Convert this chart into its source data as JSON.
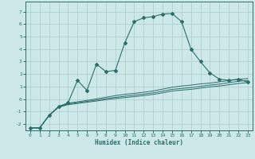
{
  "bg_color": "#cce8e8",
  "grid_color": "#aacccc",
  "line_color": "#2d6e6a",
  "xlabel": "Humidex (Indice chaleur)",
  "xlim": [
    -0.5,
    23.5
  ],
  "ylim": [
    -2.5,
    7.8
  ],
  "yticks": [
    -2,
    -1,
    0,
    1,
    2,
    3,
    4,
    5,
    6,
    7
  ],
  "xticks": [
    0,
    1,
    2,
    3,
    4,
    5,
    6,
    7,
    8,
    9,
    10,
    11,
    12,
    13,
    14,
    15,
    16,
    17,
    18,
    19,
    20,
    21,
    22,
    23
  ],
  "lines": [
    {
      "x": [
        0,
        1,
        2,
        3,
        4,
        5,
        6,
        7,
        8,
        9,
        10,
        11,
        12,
        13,
        14,
        15,
        16,
        17,
        18,
        19,
        20,
        21,
        22,
        23
      ],
      "y": [
        -2.3,
        -2.3,
        -1.3,
        -0.6,
        -0.3,
        1.5,
        0.7,
        2.8,
        2.2,
        2.3,
        4.5,
        6.2,
        6.5,
        6.6,
        6.8,
        6.85,
        6.2,
        4.0,
        3.0,
        2.1,
        1.6,
        1.5,
        1.6,
        1.35
      ],
      "marker": true
    },
    {
      "x": [
        0,
        1,
        2,
        3,
        4,
        5,
        6,
        7,
        8,
        9,
        10,
        11,
        12,
        13,
        14,
        15,
        16,
        17,
        18,
        19,
        20,
        21,
        22,
        23
      ],
      "y": [
        -2.3,
        -2.3,
        -1.3,
        -0.65,
        -0.45,
        -0.35,
        -0.25,
        -0.15,
        -0.05,
        0.05,
        0.12,
        0.2,
        0.28,
        0.38,
        0.5,
        0.65,
        0.72,
        0.78,
        0.88,
        0.98,
        1.05,
        1.15,
        1.25,
        1.32
      ],
      "marker": false
    },
    {
      "x": [
        0,
        1,
        2,
        3,
        4,
        5,
        6,
        7,
        8,
        9,
        10,
        11,
        12,
        13,
        14,
        15,
        16,
        17,
        18,
        19,
        20,
        21,
        22,
        23
      ],
      "y": [
        -2.3,
        -2.3,
        -1.3,
        -0.62,
        -0.38,
        -0.28,
        -0.18,
        -0.08,
        0.04,
        0.14,
        0.23,
        0.32,
        0.4,
        0.5,
        0.63,
        0.78,
        0.85,
        0.92,
        1.02,
        1.12,
        1.2,
        1.32,
        1.42,
        1.5
      ],
      "marker": false
    },
    {
      "x": [
        0,
        1,
        2,
        3,
        4,
        5,
        6,
        7,
        8,
        9,
        10,
        11,
        12,
        13,
        14,
        15,
        16,
        17,
        18,
        19,
        20,
        21,
        22,
        23
      ],
      "y": [
        -2.3,
        -2.3,
        -1.3,
        -0.58,
        -0.32,
        -0.22,
        -0.1,
        0.02,
        0.15,
        0.28,
        0.38,
        0.46,
        0.55,
        0.65,
        0.8,
        0.95,
        1.05,
        1.12,
        1.22,
        1.28,
        1.38,
        1.48,
        1.58,
        1.65
      ],
      "marker": false
    }
  ]
}
